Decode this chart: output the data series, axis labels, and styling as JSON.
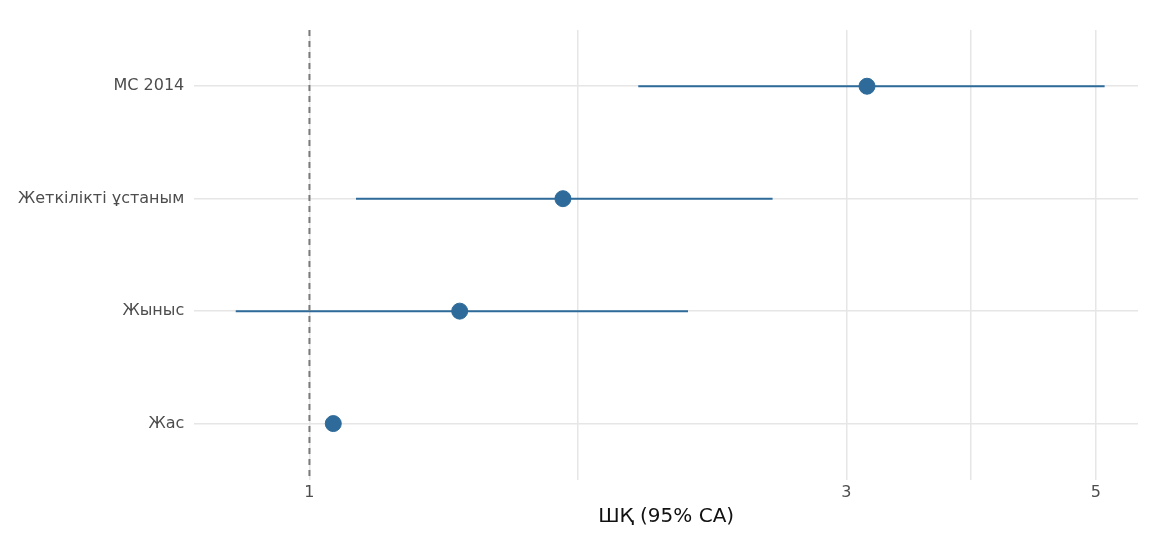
{
  "chart_data": {
    "type": "scatter",
    "orientation": "horizontal",
    "xlabel": "ШҚ (95% СА)",
    "categories": [
      "МС 2014",
      "Жеткілікті ұстаным",
      "Жыныс",
      "Жас"
    ],
    "series": [
      {
        "color": "#2e6b9a",
        "values": [
          3.13,
          1.68,
          1.36,
          1.05
        ],
        "errors": [
          [
            1.96,
            5.09
          ],
          [
            1.1,
            2.58
          ],
          [
            0.86,
            2.17
          ],
          null
        ]
      }
    ],
    "xlim": [
      0.79,
      5.45
    ],
    "xticks": [
      1,
      {
        "value": 1.73,
        "label": null
      },
      3,
      {
        "value": 3.87,
        "label": null
      },
      5
    ],
    "log": "x",
    "grid": true,
    "marker": "circle",
    "ref_lines": [
      {
        "axis": "x",
        "value": 1,
        "color": "#7a7a7a",
        "line_style": "dashed"
      }
    ]
  }
}
